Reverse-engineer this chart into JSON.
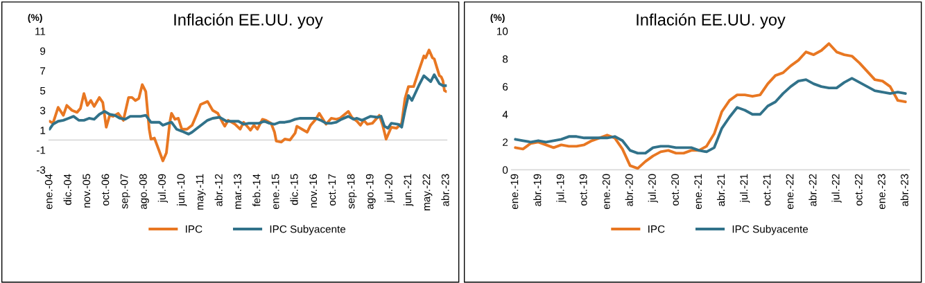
{
  "chart_data": [
    {
      "type": "line",
      "title": "Inflación EE.UU. yoy",
      "ylabel": "(%)",
      "ylim": [
        -3,
        11
      ],
      "yticks": [
        -3,
        -1,
        1,
        3,
        5,
        7,
        9,
        11
      ],
      "grid": false,
      "legend": "bottom",
      "xlim": [
        "2004-01",
        "2023-04"
      ],
      "xticks": [
        {
          "value": "2004-01",
          "label": "ene.-04"
        },
        {
          "value": "2004-12",
          "label": "dic.-04"
        },
        {
          "value": "2005-11",
          "label": "nov.-05"
        },
        {
          "value": "2006-10",
          "label": "oct.-06"
        },
        {
          "value": "2007-09",
          "label": "sep.-07"
        },
        {
          "value": "2008-08",
          "label": "ago.-08"
        },
        {
          "value": "2009-07",
          "label": "jul.-09"
        },
        {
          "value": "2010-06",
          "label": "jun.-10"
        },
        {
          "value": "2011-05",
          "label": "may.-11"
        },
        {
          "value": "2012-04",
          "label": "abr.-12"
        },
        {
          "value": "2013-03",
          "label": "mar.-13"
        },
        {
          "value": "2014-02",
          "label": "feb.-14"
        },
        {
          "value": "2015-01",
          "label": "ene.-15"
        },
        {
          "value": "2015-12",
          "label": "dic.-15"
        },
        {
          "value": "2016-11",
          "label": "nov.-16"
        },
        {
          "value": "2017-10",
          "label": "oct.-17"
        },
        {
          "value": "2018-09",
          "label": "sep.-18"
        },
        {
          "value": "2019-08",
          "label": "ago.-19"
        },
        {
          "value": "2020-07",
          "label": "jul.-20"
        },
        {
          "value": "2021-06",
          "label": "jun.-21"
        },
        {
          "value": "2022-05",
          "label": "may.-22"
        },
        {
          "value": "2023-04",
          "label": "abr.-23"
        }
      ],
      "ref_lines": [
        {
          "axis": "y",
          "value": 0,
          "color": "#d9d9d9"
        }
      ],
      "series": [
        {
          "name": "IPC",
          "color": "#e87722",
          "x": [
            "2004-01",
            "2004-03",
            "2004-06",
            "2004-09",
            "2004-11",
            "2005-02",
            "2005-05",
            "2005-07",
            "2005-09",
            "2005-11",
            "2006-01",
            "2006-03",
            "2006-06",
            "2006-08",
            "2006-10",
            "2006-12",
            "2007-02",
            "2007-05",
            "2007-08",
            "2007-11",
            "2008-01",
            "2008-03",
            "2008-05",
            "2008-07",
            "2008-09",
            "2008-11",
            "2008-12",
            "2009-02",
            "2009-04",
            "2009-07",
            "2009-09",
            "2009-11",
            "2009-12",
            "2010-02",
            "2010-04",
            "2010-06",
            "2010-09",
            "2010-12",
            "2011-03",
            "2011-05",
            "2011-09",
            "2011-12",
            "2012-03",
            "2012-06",
            "2012-07",
            "2012-09",
            "2012-11",
            "2013-01",
            "2013-04",
            "2013-06",
            "2013-09",
            "2013-10",
            "2013-12",
            "2014-02",
            "2014-05",
            "2014-07",
            "2014-10",
            "2014-12",
            "2015-01",
            "2015-04",
            "2015-06",
            "2015-09",
            "2015-12",
            "2016-01",
            "2016-04",
            "2016-07",
            "2016-09",
            "2016-12",
            "2017-02",
            "2017-06",
            "2017-09",
            "2017-12",
            "2018-02",
            "2018-07",
            "2018-09",
            "2018-12",
            "2019-02",
            "2019-04",
            "2019-06",
            "2019-09",
            "2020-01",
            "2020-03",
            "2020-05",
            "2020-08",
            "2020-11",
            "2021-02",
            "2021-04",
            "2021-06",
            "2021-09",
            "2021-12",
            "2022-03",
            "2022-04",
            "2022-06",
            "2022-08",
            "2022-09",
            "2022-12",
            "2023-01",
            "2023-02",
            "2023-03",
            "2023-04"
          ],
          "values": [
            1.9,
            1.7,
            3.3,
            2.5,
            3.5,
            3.0,
            2.8,
            3.2,
            4.7,
            3.5,
            4.0,
            3.4,
            4.3,
            3.8,
            1.3,
            2.5,
            2.4,
            2.7,
            2.0,
            4.3,
            4.3,
            4.0,
            4.2,
            5.6,
            4.9,
            1.1,
            0.1,
            0.2,
            -0.7,
            -2.1,
            -1.3,
            1.8,
            2.7,
            2.1,
            2.2,
            1.1,
            1.1,
            1.5,
            2.7,
            3.6,
            3.9,
            3.0,
            2.7,
            1.7,
            1.4,
            2.0,
            1.8,
            1.6,
            1.1,
            1.8,
            1.2,
            1.0,
            1.5,
            1.1,
            2.1,
            2.0,
            1.7,
            0.8,
            -0.1,
            -0.2,
            0.1,
            0.0,
            0.7,
            1.4,
            1.1,
            0.8,
            1.5,
            2.1,
            2.7,
            1.6,
            2.2,
            2.1,
            2.2,
            2.9,
            2.3,
            1.9,
            1.5,
            2.0,
            1.6,
            1.7,
            2.5,
            1.5,
            0.1,
            1.3,
            1.2,
            1.7,
            4.2,
            5.4,
            5.4,
            7.0,
            8.5,
            8.3,
            9.1,
            8.3,
            8.2,
            6.5,
            6.4,
            6.0,
            5.0,
            4.9
          ]
        },
        {
          "name": "IPC Subyacente",
          "color": "#31728a",
          "x": [
            "2004-01",
            "2004-03",
            "2004-06",
            "2004-09",
            "2004-12",
            "2005-03",
            "2005-06",
            "2005-09",
            "2005-12",
            "2006-03",
            "2006-06",
            "2006-09",
            "2006-12",
            "2007-03",
            "2007-06",
            "2007-09",
            "2007-12",
            "2008-03",
            "2008-06",
            "2008-09",
            "2008-12",
            "2009-03",
            "2009-05",
            "2009-07",
            "2009-10",
            "2009-12",
            "2010-03",
            "2010-06",
            "2010-10",
            "2010-12",
            "2011-03",
            "2011-06",
            "2011-09",
            "2011-12",
            "2012-04",
            "2012-08",
            "2012-12",
            "2013-03",
            "2013-06",
            "2013-09",
            "2013-12",
            "2014-03",
            "2014-06",
            "2014-09",
            "2014-12",
            "2015-03",
            "2015-06",
            "2015-09",
            "2015-12",
            "2016-03",
            "2016-06",
            "2016-09",
            "2016-12",
            "2017-03",
            "2017-06",
            "2017-09",
            "2017-12",
            "2018-03",
            "2018-07",
            "2018-10",
            "2018-12",
            "2019-03",
            "2019-08",
            "2019-12",
            "2020-02",
            "2020-04",
            "2020-06",
            "2020-08",
            "2020-12",
            "2021-02",
            "2021-04",
            "2021-06",
            "2021-08",
            "2021-12",
            "2022-03",
            "2022-07",
            "2022-09",
            "2022-12",
            "2023-02",
            "2023-04"
          ],
          "values": [
            1.1,
            1.6,
            1.9,
            2.0,
            2.2,
            2.4,
            2.0,
            2.0,
            2.2,
            2.1,
            2.6,
            2.9,
            2.6,
            2.5,
            2.2,
            2.1,
            2.4,
            2.4,
            2.4,
            2.5,
            1.8,
            1.8,
            1.8,
            1.5,
            1.7,
            1.8,
            1.1,
            0.9,
            0.6,
            0.8,
            1.2,
            1.6,
            2.0,
            2.2,
            2.3,
            1.9,
            1.9,
            1.9,
            1.6,
            1.7,
            1.7,
            1.7,
            1.9,
            1.7,
            1.6,
            1.8,
            1.8,
            1.9,
            2.1,
            2.2,
            2.2,
            2.2,
            2.2,
            2.0,
            1.7,
            1.7,
            1.8,
            2.1,
            2.4,
            2.1,
            2.2,
            2.0,
            2.4,
            2.3,
            2.4,
            1.4,
            1.2,
            1.7,
            1.6,
            1.3,
            3.0,
            4.5,
            4.0,
            5.5,
            6.5,
            5.9,
            6.6,
            5.7,
            5.5,
            5.5
          ]
        }
      ]
    },
    {
      "type": "line",
      "title": "Inflación EE.UU. yoy",
      "ylabel": "(%)",
      "ylim": [
        0,
        10
      ],
      "yticks": [
        0,
        2,
        4,
        6,
        8,
        10
      ],
      "grid": false,
      "legend": "bottom",
      "categories": [
        "ene.-19",
        null,
        null,
        "abr.-19",
        null,
        null,
        "jul.-19",
        null,
        null,
        "oct.-19",
        null,
        null,
        "ene.-20",
        null,
        null,
        "abr.-20",
        null,
        null,
        "jul.-20",
        null,
        null,
        "oct.-20",
        null,
        null,
        "ene.-21",
        null,
        null,
        "abr.-21",
        null,
        null,
        "jul.-21",
        null,
        null,
        "oct.-21",
        null,
        null,
        "ene.-22",
        null,
        null,
        "abr.-22",
        null,
        null,
        "jul.-22",
        null,
        null,
        "oct.-22",
        null,
        null,
        "ene.-23",
        null,
        null,
        "abr.-23"
      ],
      "series": [
        {
          "name": "IPC",
          "color": "#e87722",
          "values": [
            1.6,
            1.5,
            1.9,
            2.0,
            1.8,
            1.6,
            1.8,
            1.7,
            1.7,
            1.8,
            2.1,
            2.3,
            2.5,
            2.3,
            1.5,
            0.3,
            0.1,
            0.6,
            1.0,
            1.3,
            1.4,
            1.2,
            1.2,
            1.4,
            1.4,
            1.7,
            2.6,
            4.2,
            5.0,
            5.4,
            5.4,
            5.3,
            5.4,
            6.2,
            6.8,
            7.0,
            7.5,
            7.9,
            8.5,
            8.3,
            8.6,
            9.1,
            8.5,
            8.3,
            8.2,
            7.7,
            7.1,
            6.5,
            6.4,
            6.0,
            5.0,
            4.9
          ]
        },
        {
          "name": "IPC Subyacente",
          "color": "#31728a",
          "values": [
            2.2,
            2.1,
            2.0,
            2.1,
            2.0,
            2.1,
            2.2,
            2.4,
            2.4,
            2.3,
            2.3,
            2.3,
            2.3,
            2.4,
            2.1,
            1.4,
            1.2,
            1.2,
            1.6,
            1.7,
            1.7,
            1.6,
            1.6,
            1.6,
            1.4,
            1.3,
            1.6,
            3.0,
            3.8,
            4.5,
            4.3,
            4.0,
            4.0,
            4.6,
            4.9,
            5.5,
            6.0,
            6.4,
            6.5,
            6.2,
            6.0,
            5.9,
            5.9,
            6.3,
            6.6,
            6.3,
            6.0,
            5.7,
            5.6,
            5.5,
            5.6,
            5.5
          ]
        }
      ]
    }
  ]
}
